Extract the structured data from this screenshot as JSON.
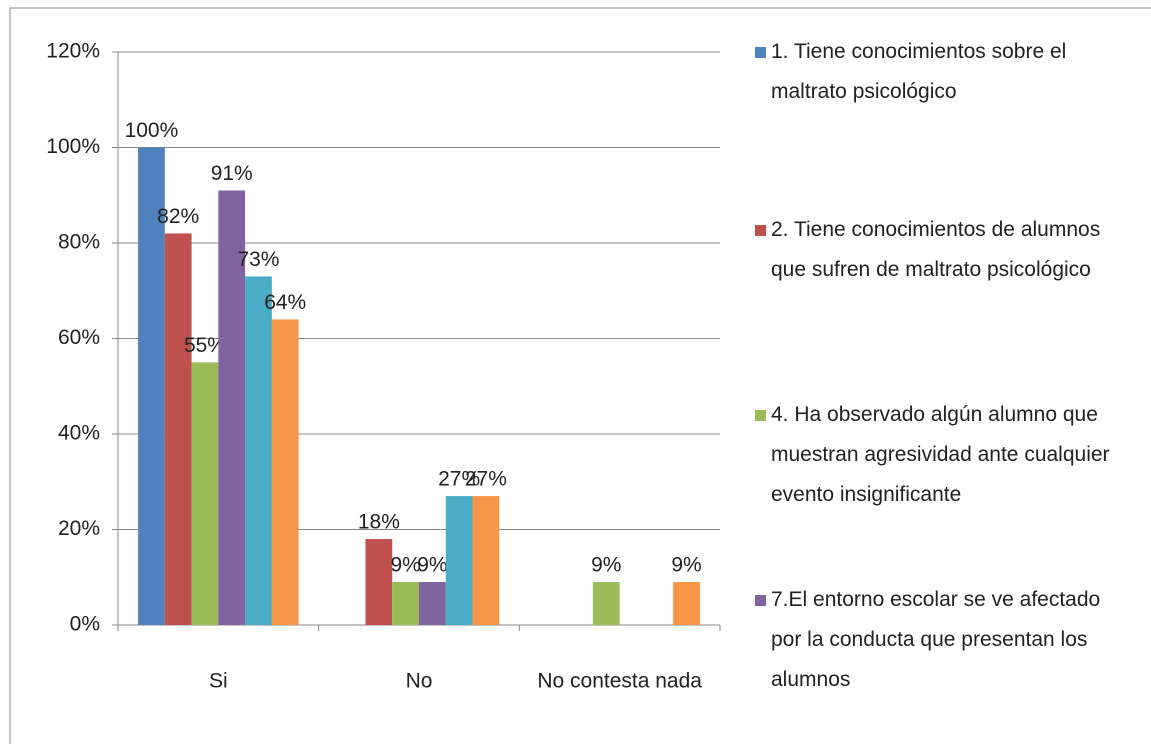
{
  "chart_data": {
    "type": "bar",
    "categories": [
      "Si",
      "No",
      "No contesta nada"
    ],
    "series": [
      {
        "name": "1. Tiene conocimientos  sobre el maltrato psicológico",
        "color": "#4f81bd",
        "values": [
          100,
          null,
          null
        ],
        "value_labels": [
          "100%",
          null,
          null
        ]
      },
      {
        "name": "2. Tiene conocimientos de alumnos que sufren de maltrato psicológico",
        "color": "#c0504d",
        "values": [
          82,
          18,
          null
        ],
        "value_labels": [
          "82%",
          "18%",
          null
        ]
      },
      {
        "name": "4. Ha observado algún alumno que muestran agresividad ante cualquier evento insignificante",
        "color": "#9bbb59",
        "values": [
          55,
          9,
          9
        ],
        "value_labels": [
          "55%",
          "9%",
          "9%"
        ]
      },
      {
        "name": "7.El entorno escolar se ve afectado por la conducta que presentan los alumnos",
        "color": "#8064a2",
        "values": [
          91,
          9,
          null
        ],
        "value_labels": [
          "91%",
          "9%",
          null
        ]
      },
      {
        "color": "#4bacc6",
        "values": [
          73,
          27,
          null
        ],
        "value_labels": [
          "73%",
          "27%",
          null
        ]
      },
      {
        "color": "#f79646",
        "values": [
          64,
          27,
          9
        ],
        "value_labels": [
          "64%",
          "27%",
          "9%"
        ]
      }
    ],
    "ylim": [
      0,
      120
    ],
    "yticks": [
      {
        "value": 0,
        "label": "0%"
      },
      {
        "value": 20,
        "label": "20%"
      },
      {
        "value": 40,
        "label": "40%"
      },
      {
        "value": 60,
        "label": "60%"
      },
      {
        "value": 80,
        "label": "80%"
      },
      {
        "value": 100,
        "label": "100%"
      },
      {
        "value": 120,
        "label": "120%"
      }
    ],
    "grid": true
  }
}
